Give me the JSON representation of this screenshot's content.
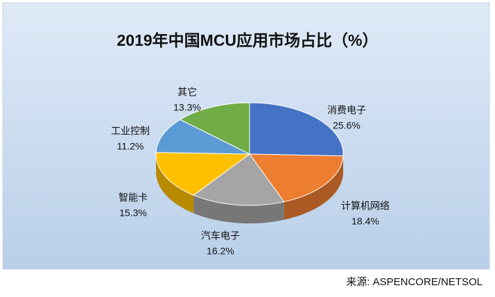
{
  "chart_data": {
    "type": "pie",
    "title": "2019年中国MCU应用市场占比（%）",
    "categories": [
      "消费电子",
      "计算机网络",
      "汽车电子",
      "智能卡",
      "工业控制",
      "其它"
    ],
    "values": [
      25.6,
      18.4,
      16.2,
      15.3,
      11.2,
      13.3
    ],
    "value_labels": [
      "25.6%",
      "18.4%",
      "16.2%",
      "15.3%",
      "11.2%",
      "13.3%"
    ],
    "colors": [
      "#4472c4",
      "#ed7d31",
      "#a5a5a5",
      "#ffc000",
      "#5b9bd5",
      "#70ad47"
    ],
    "source": "来源:  ASPENCORE/NETSOL"
  }
}
